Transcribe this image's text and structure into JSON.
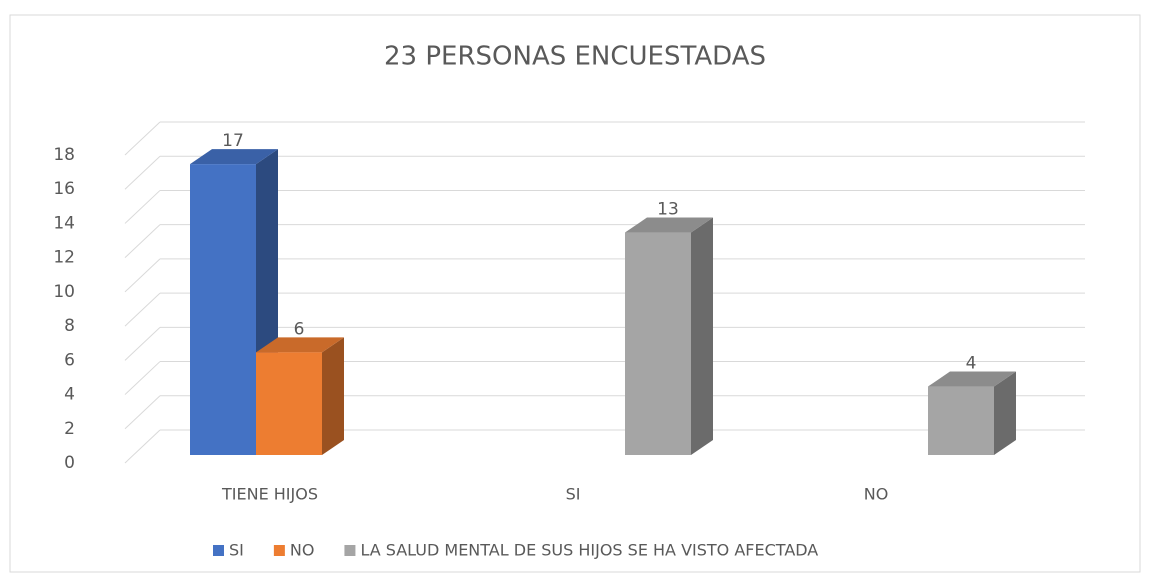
{
  "chart_data": {
    "type": "bar3d",
    "title": "23 PERSONAS ENCUESTADAS",
    "categories": [
      "TIENE HIJOS",
      "SI",
      "NO"
    ],
    "series": [
      {
        "name": "SI",
        "color": "#4472c4",
        "values": [
          17,
          null,
          null
        ]
      },
      {
        "name": "NO",
        "color": "#ed7d31",
        "values": [
          6,
          null,
          null
        ]
      },
      {
        "name": "LA SALUD MENTAL DE SUS HIJOS SE HA VISTO AFECTADA",
        "color": "#a5a5a5",
        "values": [
          null,
          13,
          4
        ]
      }
    ],
    "ylim": [
      0,
      18
    ],
    "yticks": [
      0,
      2,
      4,
      6,
      8,
      10,
      12,
      14,
      16,
      18
    ],
    "grid": true,
    "legend": "bottom"
  }
}
